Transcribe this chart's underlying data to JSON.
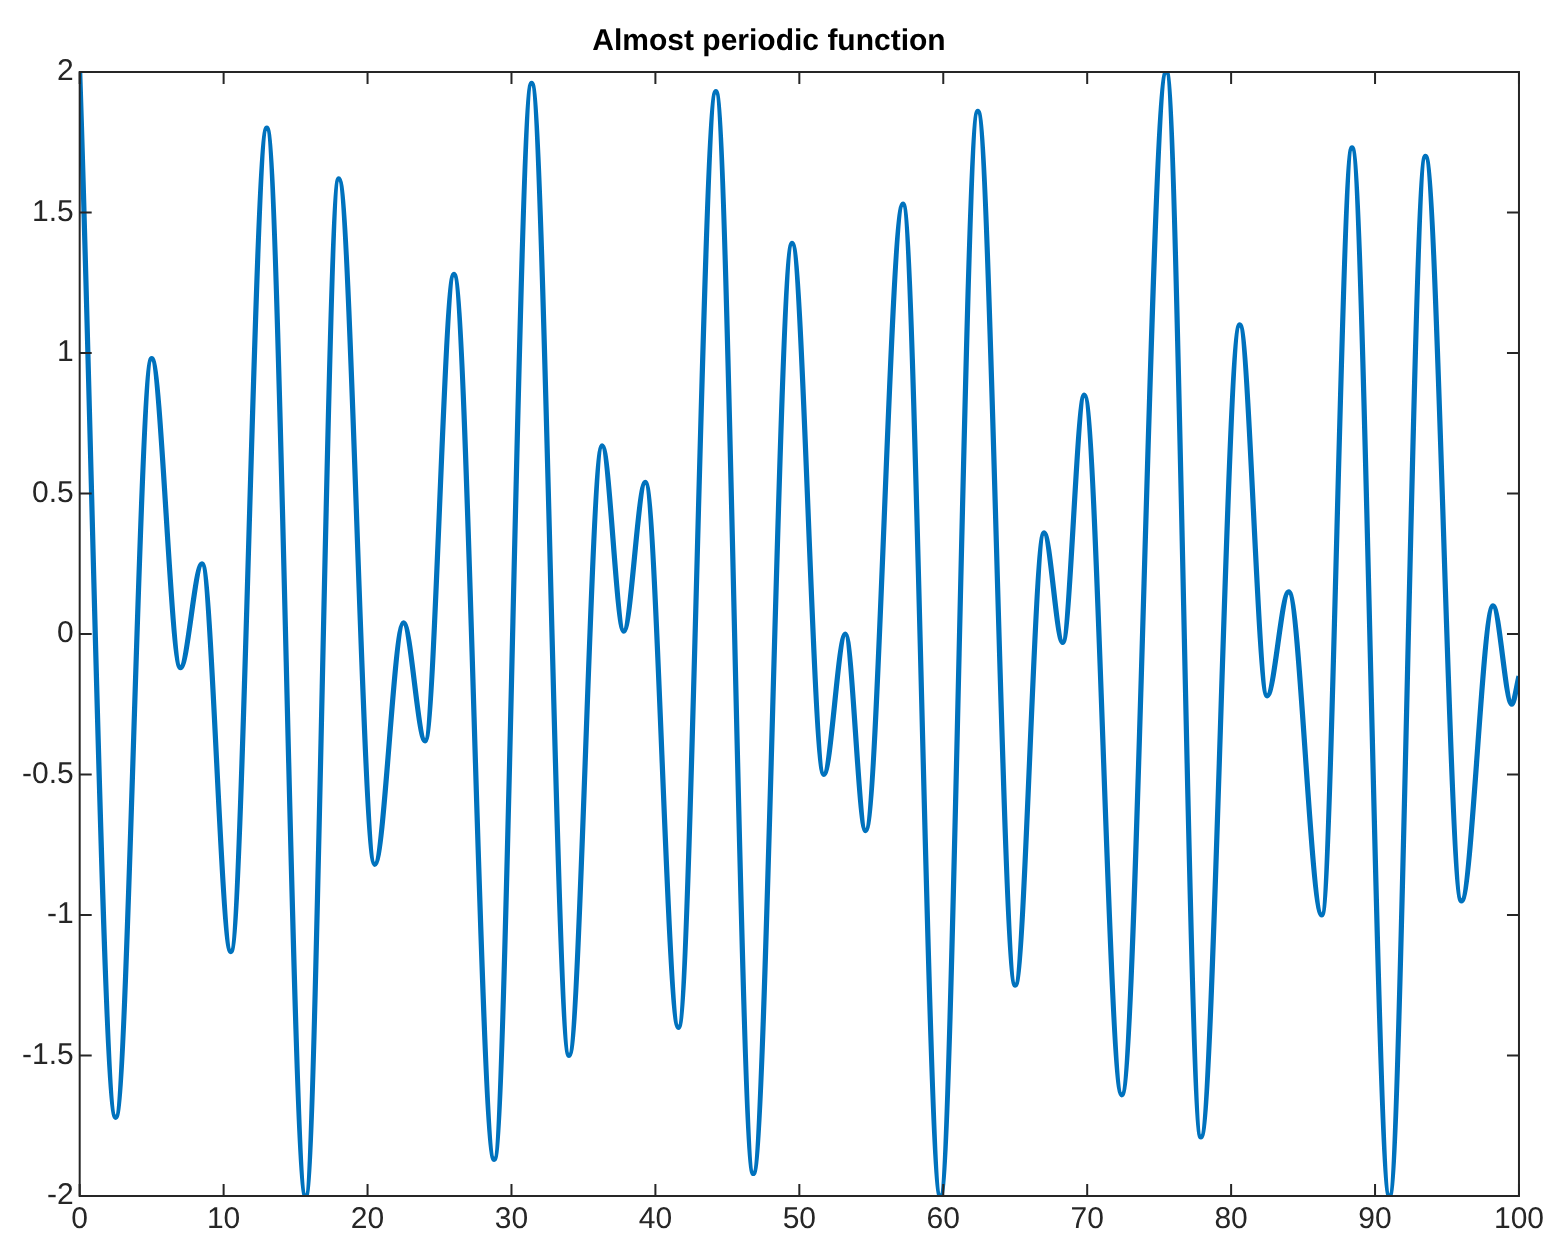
{
  "chart_data": {
    "type": "line",
    "title": "Almost periodic function",
    "x": [
      0,
      2.5,
      5,
      7,
      8.5,
      10.5,
      13,
      15.7,
      18,
      20.5,
      22.5,
      24,
      26,
      28.8,
      31.4,
      34,
      36.3,
      37.8,
      39.3,
      41.6,
      44.2,
      46.8,
      49.5,
      51.7,
      53.2,
      54.6,
      57.2,
      59.8,
      62.4,
      65,
      67,
      68.3,
      69.8,
      72.4,
      75.5,
      77.9,
      80.6,
      82.5,
      84,
      86.3,
      88.4,
      91,
      93.5,
      96,
      98.2,
      99.5,
      100
    ],
    "series": [
      {
        "color": "#0072bd",
        "values": [
          2,
          -1.72,
          0.98,
          -0.12,
          0.25,
          -1.13,
          1.8,
          -2,
          1.62,
          -0.82,
          0.04,
          -0.38,
          1.28,
          -1.87,
          1.96,
          -1.5,
          0.67,
          0.01,
          0.54,
          -1.4,
          1.93,
          -1.92,
          1.39,
          -0.5,
          0,
          -0.7,
          1.53,
          -2,
          1.86,
          -1.25,
          0.36,
          -0.03,
          0.85,
          -1.64,
          2,
          -1.79,
          1.1,
          -0.22,
          0.15,
          -1,
          1.73,
          -2,
          1.7,
          -0.95,
          0.1,
          -0.25,
          -0.15
        ]
      }
    ],
    "xlim": [
      0,
      100
    ],
    "xticks": [
      0,
      10,
      20,
      30,
      40,
      50,
      60,
      70,
      80,
      90,
      100
    ],
    "ylim": [
      -2,
      2
    ],
    "yticks": [
      -2,
      -1.5,
      -1,
      -0.5,
      0,
      0.5,
      1,
      1.5,
      2
    ],
    "grid": false,
    "legend": false,
    "marker": "none",
    "line_style": "solid"
  }
}
